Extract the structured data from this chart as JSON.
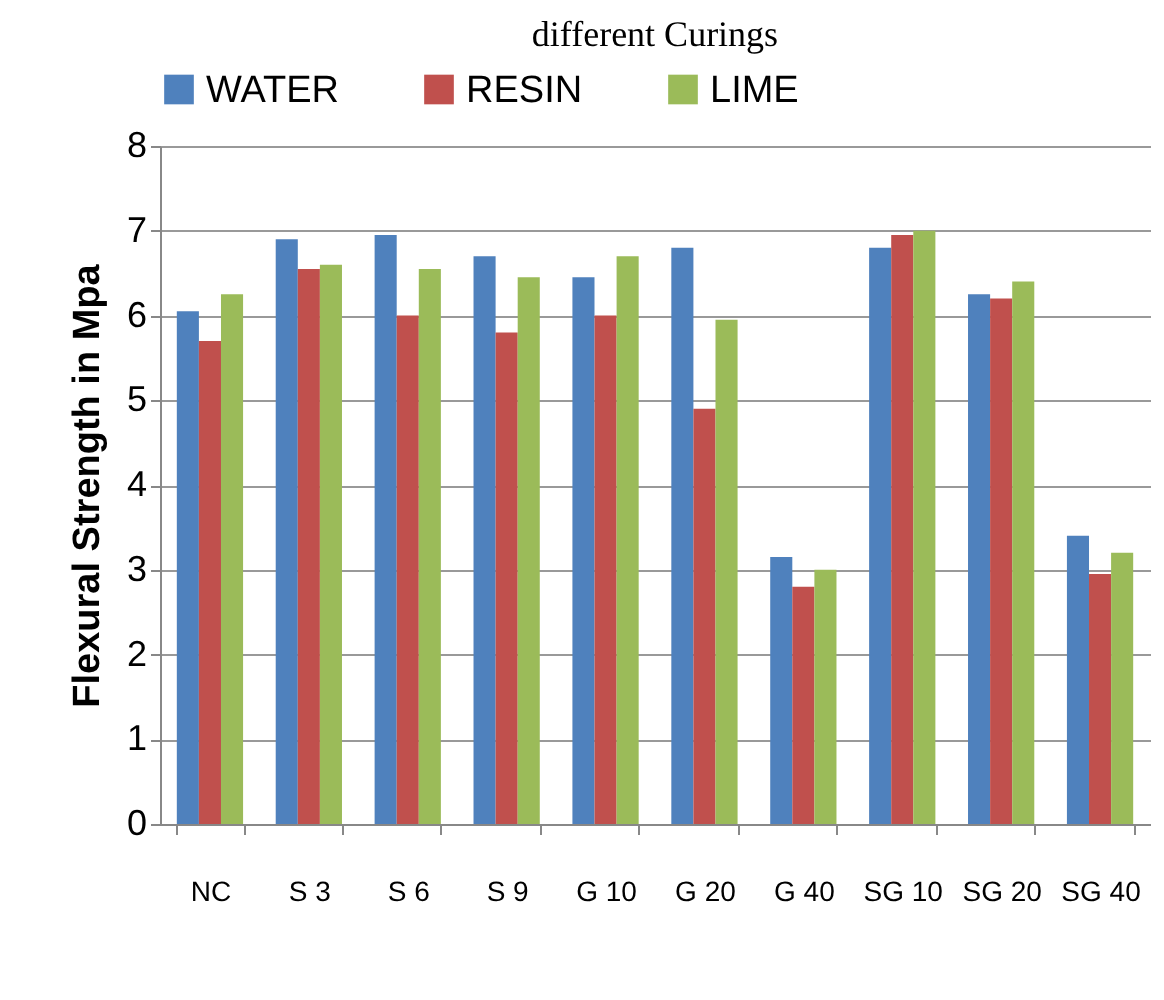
{
  "chart_data": {
    "type": "bar",
    "title": "different Curings",
    "ylabel": "Flexural  Strength in Mpa",
    "categories": [
      "NC",
      "S 3",
      "S 6",
      "S 9",
      "G 10",
      "G 20",
      "G 40",
      "SG 10",
      "SG 20",
      "SG 40"
    ],
    "series": [
      {
        "name": "WATER",
        "color": "#4f81bd",
        "values": [
          6.05,
          6.9,
          6.95,
          6.7,
          6.45,
          6.8,
          3.15,
          6.8,
          6.25,
          3.4
        ]
      },
      {
        "name": "RESIN",
        "color": "#c0504d",
        "values": [
          5.7,
          6.55,
          6.0,
          5.8,
          6.0,
          4.9,
          2.8,
          6.95,
          6.2,
          2.95
        ]
      },
      {
        "name": "LIME",
        "color": "#9bbb59",
        "values": [
          6.25,
          6.6,
          6.55,
          6.45,
          6.7,
          5.95,
          3.0,
          7.0,
          6.4,
          3.2
        ]
      }
    ],
    "ylim": [
      0,
      8
    ],
    "yticks": [
      0,
      1,
      2,
      3,
      4,
      5,
      6,
      7,
      8
    ],
    "grid": "y",
    "legend": "top"
  }
}
